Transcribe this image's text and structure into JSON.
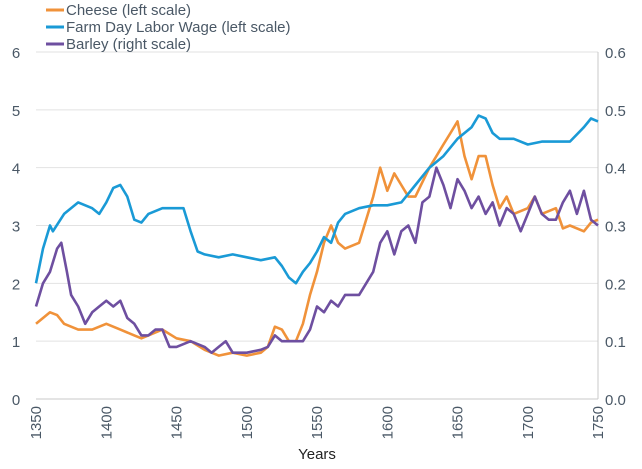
{
  "chart_data": {
    "type": "line",
    "title": "",
    "xlabel": "Years",
    "ylabel_left": "",
    "ylabel_right": "",
    "xlim": [
      1350,
      1750
    ],
    "ylim_left": [
      0,
      6
    ],
    "ylim_right": [
      0.0,
      0.6
    ],
    "x_ticks": [
      "1350",
      "1400",
      "1450",
      "1500",
      "1550",
      "1600",
      "1650",
      "1700",
      "1750"
    ],
    "y_ticks_left": [
      "0",
      "1",
      "2",
      "3",
      "4",
      "5",
      "6"
    ],
    "y_ticks_right": [
      "0.0",
      "0.1",
      "0.2",
      "0.3",
      "0.4",
      "0.5",
      "0.6"
    ],
    "grid": true,
    "legend_position": "top-left",
    "series": [
      {
        "name": "Cheese (left scale)",
        "axis": "left",
        "color": "#f0923a",
        "x": [
          1350,
          1355,
          1360,
          1365,
          1370,
          1380,
          1390,
          1400,
          1410,
          1420,
          1425,
          1430,
          1440,
          1450,
          1460,
          1470,
          1480,
          1490,
          1500,
          1510,
          1515,
          1520,
          1525,
          1530,
          1535,
          1540,
          1545,
          1550,
          1555,
          1560,
          1565,
          1570,
          1580,
          1590,
          1595,
          1600,
          1605,
          1610,
          1615,
          1620,
          1630,
          1640,
          1645,
          1650,
          1655,
          1660,
          1665,
          1670,
          1675,
          1680,
          1685,
          1690,
          1700,
          1705,
          1710,
          1720,
          1725,
          1730,
          1740,
          1745,
          1750
        ],
        "y": [
          1.3,
          1.4,
          1.5,
          1.45,
          1.3,
          1.2,
          1.2,
          1.3,
          1.2,
          1.1,
          1.05,
          1.1,
          1.2,
          1.05,
          1.0,
          0.85,
          0.75,
          0.8,
          0.75,
          0.8,
          0.9,
          1.25,
          1.2,
          1.0,
          1.0,
          1.3,
          1.8,
          2.2,
          2.7,
          3.0,
          2.7,
          2.6,
          2.7,
          3.5,
          4.0,
          3.6,
          3.9,
          3.7,
          3.5,
          3.5,
          4.0,
          4.4,
          4.6,
          4.8,
          4.2,
          3.8,
          4.2,
          4.2,
          3.7,
          3.3,
          3.5,
          3.2,
          3.3,
          3.5,
          3.2,
          3.3,
          2.95,
          3.0,
          2.9,
          3.05,
          3.1
        ]
      },
      {
        "name": "Farm Day Labor Wage (left scale)",
        "axis": "left",
        "color": "#1a9ad6",
        "x": [
          1350,
          1355,
          1360,
          1362,
          1370,
          1380,
          1390,
          1395,
          1400,
          1405,
          1410,
          1415,
          1420,
          1425,
          1430,
          1440,
          1450,
          1455,
          1460,
          1465,
          1470,
          1480,
          1490,
          1500,
          1510,
          1520,
          1525,
          1530,
          1535,
          1540,
          1545,
          1550,
          1555,
          1560,
          1565,
          1570,
          1580,
          1590,
          1600,
          1610,
          1620,
          1630,
          1640,
          1650,
          1660,
          1665,
          1670,
          1675,
          1680,
          1690,
          1700,
          1710,
          1720,
          1730,
          1740,
          1745,
          1750
        ],
        "y": [
          2.0,
          2.6,
          3.0,
          2.9,
          3.2,
          3.4,
          3.3,
          3.2,
          3.4,
          3.65,
          3.7,
          3.5,
          3.1,
          3.05,
          3.2,
          3.3,
          3.3,
          3.3,
          2.9,
          2.55,
          2.5,
          2.45,
          2.5,
          2.45,
          2.4,
          2.45,
          2.3,
          2.1,
          2.0,
          2.2,
          2.35,
          2.55,
          2.8,
          2.7,
          3.05,
          3.2,
          3.3,
          3.35,
          3.35,
          3.4,
          3.7,
          4.0,
          4.2,
          4.5,
          4.7,
          4.9,
          4.85,
          4.6,
          4.5,
          4.5,
          4.4,
          4.45,
          4.45,
          4.45,
          4.7,
          4.85,
          4.8
        ]
      },
      {
        "name": "Barley (right scale)",
        "axis": "right",
        "color": "#6e4fa0",
        "x": [
          1350,
          1355,
          1360,
          1365,
          1368,
          1372,
          1375,
          1380,
          1385,
          1390,
          1395,
          1400,
          1405,
          1410,
          1415,
          1420,
          1425,
          1430,
          1435,
          1440,
          1445,
          1450,
          1460,
          1470,
          1475,
          1480,
          1485,
          1490,
          1500,
          1510,
          1515,
          1520,
          1525,
          1530,
          1535,
          1540,
          1545,
          1550,
          1555,
          1560,
          1565,
          1570,
          1580,
          1585,
          1590,
          1595,
          1600,
          1605,
          1610,
          1615,
          1620,
          1625,
          1630,
          1635,
          1640,
          1645,
          1650,
          1655,
          1660,
          1665,
          1670,
          1675,
          1680,
          1685,
          1690,
          1695,
          1700,
          1705,
          1710,
          1715,
          1720,
          1725,
          1730,
          1735,
          1740,
          1745,
          1750
        ],
        "y": [
          0.16,
          0.2,
          0.22,
          0.26,
          0.27,
          0.22,
          0.18,
          0.16,
          0.13,
          0.15,
          0.16,
          0.17,
          0.16,
          0.17,
          0.14,
          0.13,
          0.11,
          0.11,
          0.12,
          0.12,
          0.09,
          0.09,
          0.1,
          0.09,
          0.08,
          0.09,
          0.1,
          0.08,
          0.08,
          0.085,
          0.09,
          0.11,
          0.1,
          0.1,
          0.1,
          0.1,
          0.12,
          0.16,
          0.15,
          0.17,
          0.16,
          0.18,
          0.18,
          0.2,
          0.22,
          0.27,
          0.29,
          0.25,
          0.29,
          0.3,
          0.27,
          0.34,
          0.35,
          0.4,
          0.37,
          0.33,
          0.38,
          0.36,
          0.33,
          0.35,
          0.32,
          0.34,
          0.3,
          0.33,
          0.32,
          0.29,
          0.32,
          0.35,
          0.32,
          0.31,
          0.31,
          0.34,
          0.36,
          0.32,
          0.36,
          0.31,
          0.3
        ]
      }
    ]
  }
}
